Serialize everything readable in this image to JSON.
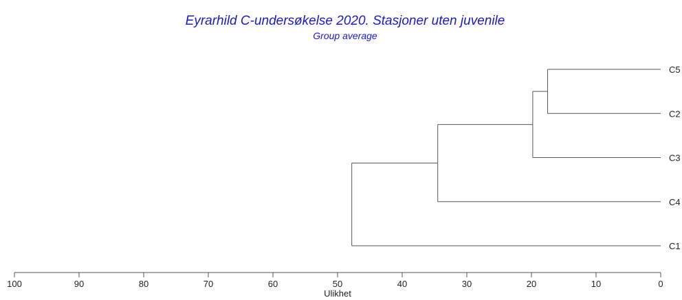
{
  "chart_data": {
    "type": "dendrogram",
    "title": "Eyrarhild C-undersøkelse 2020. Stasjoner uten juvenile",
    "subtitle": "Group average",
    "xlabel": "Ulikhet",
    "xlim": [
      100,
      0
    ],
    "ticks": [
      100,
      90,
      80,
      70,
      60,
      50,
      40,
      30,
      20,
      10,
      0
    ],
    "tick_labels": [
      "100",
      "90",
      "80",
      "70",
      "60",
      "50",
      "40",
      "30",
      "20",
      "10",
      "0"
    ],
    "leaves": [
      "C5",
      "C2",
      "C3",
      "C4",
      "C1"
    ],
    "merges": [
      {
        "a": "C5",
        "b": "C2",
        "height": 17.5
      },
      {
        "a": "C5+C2",
        "b": "C3",
        "height": 19.8
      },
      {
        "a": "C5+C2+C3",
        "b": "C4",
        "height": 34.5
      },
      {
        "a": "C5+C2+C3+C4",
        "b": "C1",
        "height": 47.8
      }
    ],
    "line_color": "#555555"
  }
}
